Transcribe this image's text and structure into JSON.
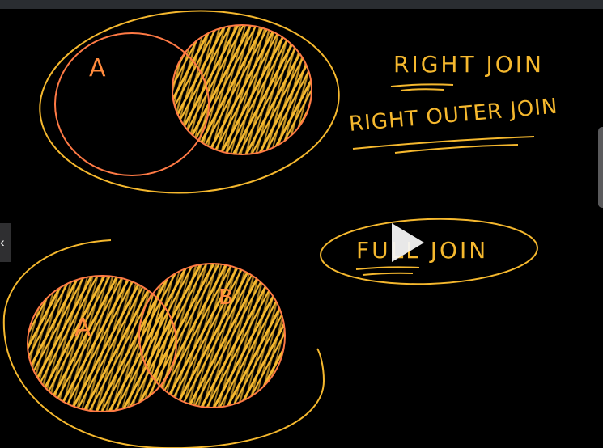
{
  "top": {
    "title_line1": "RIGHT JOIN",
    "title_line2": "RIGHT OUTER JOIN",
    "set_a_label": "A"
  },
  "bottom": {
    "title": "FULL JOIN",
    "set_a_label": "A",
    "set_b_label": "B"
  },
  "controls": {
    "collapse_glyph": "‹",
    "play_icon": "play-icon"
  },
  "colors": {
    "ink_yellow": "#f5b82e",
    "ink_orange": "#ff7a45",
    "background": "#000000"
  }
}
